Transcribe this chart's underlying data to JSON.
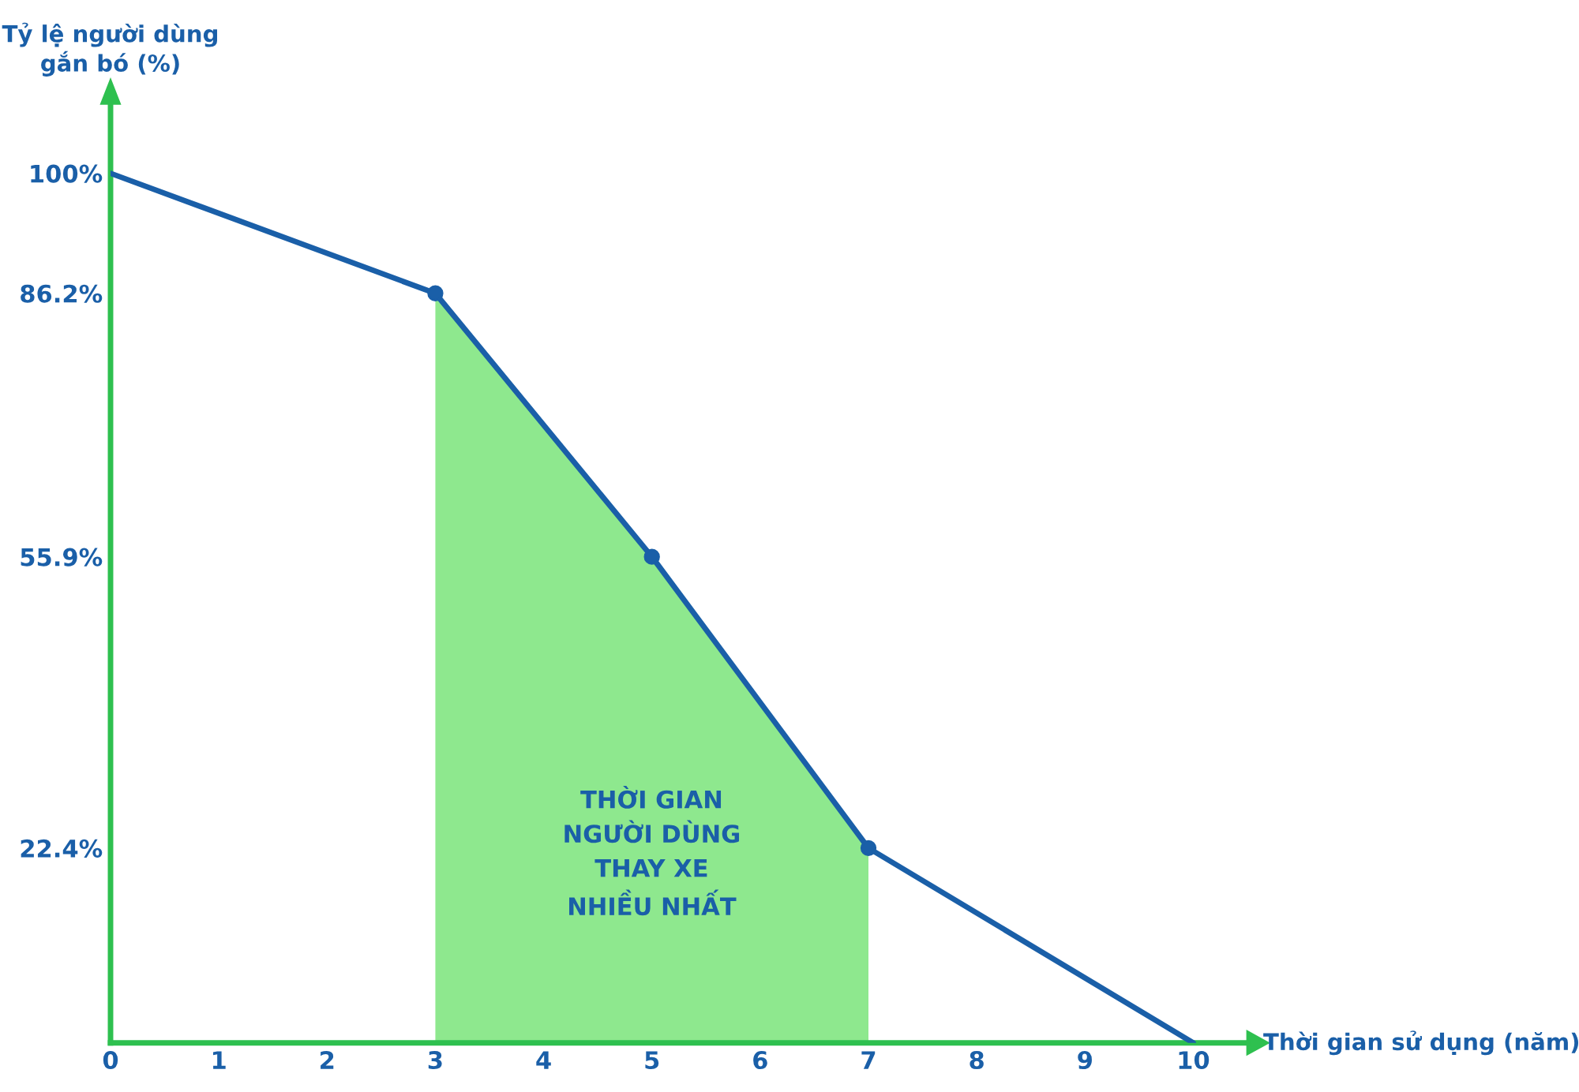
{
  "chart_data": {
    "type": "line",
    "xlabel": "Thời gian sử dụng (năm)",
    "ylabel": "Tỷ lệ người dùng\ngắn bó (%)",
    "series": [
      {
        "type": "area",
        "color": "#8ee88e",
        "x": [
          3,
          5,
          7
        ],
        "values": [
          86.2,
          55.9,
          22.4
        ]
      },
      {
        "color": "#1a5fa8",
        "x": [
          0,
          3,
          5,
          7,
          10
        ],
        "values": [
          100,
          86.2,
          55.9,
          22.4,
          0
        ]
      },
      {
        "type": "scatter",
        "color": "#1a5fa8",
        "x": [
          3,
          5,
          7
        ],
        "values": [
          86.2,
          55.9,
          22.4
        ]
      }
    ],
    "annotations": [
      "THỜI GIAN\nNGƯỜI DÙNG\nTHAY XE\nNHIỀU NHẤT"
    ],
    "xlim": [
      0,
      10.5
    ],
    "xticks": [
      0,
      1,
      2,
      3,
      4,
      5,
      6,
      7,
      8,
      9,
      10
    ],
    "ylim": [
      0,
      108
    ],
    "yticks": [
      {
        "value": 22.4,
        "label": "22.4%"
      },
      {
        "value": 55.9,
        "label": "55.9%"
      },
      {
        "value": 86.2,
        "label": "86.2%"
      },
      {
        "value": 100,
        "label": "100%"
      }
    ],
    "grid": false,
    "legend": false
  }
}
